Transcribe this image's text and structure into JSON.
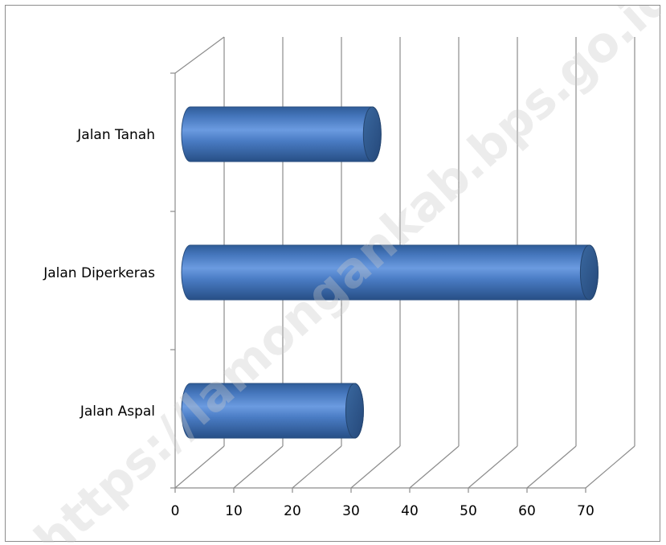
{
  "chart_data": {
    "type": "bar",
    "orientation": "horizontal",
    "style": "3d-cylinder",
    "categories": [
      "Jalan Tanah",
      "Jalan Diperkeras",
      "Jalan Aspal"
    ],
    "values": [
      31,
      68,
      28
    ],
    "xlim": [
      0,
      70
    ],
    "xticks": [
      "0",
      "10",
      "20",
      "30",
      "40",
      "50",
      "60",
      "70"
    ],
    "grid": true,
    "legend": "none",
    "bar_color": "#4f81bd",
    "watermark": "https://lamongankab.bps.go.id"
  }
}
